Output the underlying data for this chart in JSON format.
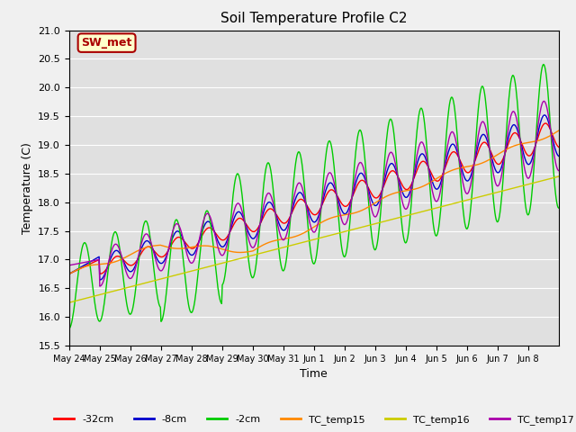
{
  "title": "Soil Temperature Profile C2",
  "xlabel": "Time",
  "ylabel": "Temperature (C)",
  "ylim": [
    15.5,
    21.0
  ],
  "fig_facecolor": "#f0f0f0",
  "plot_facecolor": "#e0e0e0",
  "sw_met_label": "SW_met",
  "sw_met_bg": "#ffffcc",
  "sw_met_border": "#aa0000",
  "sw_met_text_color": "#aa0000",
  "series_colors": {
    "-32cm": "#ff0000",
    "-8cm": "#0000cc",
    "-2cm": "#00cc00",
    "TC_temp15": "#ff8800",
    "TC_temp16": "#cccc00",
    "TC_temp17": "#aa00aa"
  },
  "x_tick_labels": [
    "May 24",
    "May 25",
    "May 26",
    "May 27",
    "May 28",
    "May 29",
    "May 30",
    "May 31",
    "Jun 1",
    "Jun 2",
    "Jun 3",
    "Jun 4",
    "Jun 5",
    "Jun 6",
    "Jun 7",
    "Jun 8"
  ],
  "n_days": 16,
  "points_per_day": 48
}
